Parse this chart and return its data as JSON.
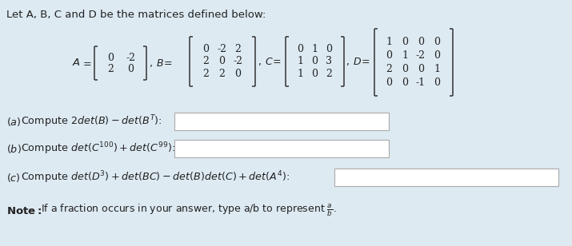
{
  "bg_color": "#ddeaf2",
  "title_text": "Let A, B, C and D be the matrices defined below:",
  "title_fontsize": 9.5,
  "matrix_fontsize": 9.0,
  "q_fontsize": 9.2,
  "note_fontsize": 9.0,
  "A_vals": [
    [
      "0",
      "-2"
    ],
    [
      "2",
      "0"
    ]
  ],
  "B_vals": [
    [
      "0",
      "-2",
      "2"
    ],
    [
      "2",
      "0",
      "-2"
    ],
    [
      "2",
      "2",
      "0"
    ]
  ],
  "C_vals": [
    [
      "0",
      "1",
      "0"
    ],
    [
      "1",
      "0",
      "3"
    ],
    [
      "1",
      "0",
      "2"
    ]
  ],
  "D_vals": [
    [
      "1",
      "0",
      "0",
      "0"
    ],
    [
      "0",
      "1",
      "-2",
      "0"
    ],
    [
      "2",
      "0",
      "0",
      "1"
    ],
    [
      "0",
      "0",
      "-1",
      "0"
    ]
  ]
}
